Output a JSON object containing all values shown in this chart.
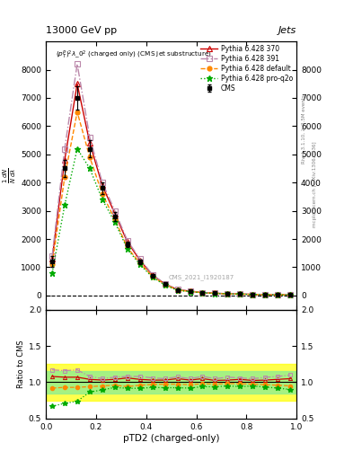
{
  "title_left": "13000 GeV pp",
  "title_right": "Jets",
  "plot_label": "$(p_T^P)^2\\lambda\\_0^2$ (charged only) (CMS jet substructure)",
  "watermark": "CMS_2021_I1920187",
  "xlabel": "pTD2 (charged-only)",
  "right_label_top": "Rivet 3.1.10, ≥ 2.5M events",
  "right_label_bottom": "mcplots.cern.ch [arXiv:1306.3436]",
  "xlim": [
    0,
    1
  ],
  "ylim_main": [
    -500,
    9000
  ],
  "ylim_ratio": [
    0.5,
    2.0
  ],
  "x_data": [
    0.025,
    0.075,
    0.125,
    0.175,
    0.225,
    0.275,
    0.325,
    0.375,
    0.425,
    0.475,
    0.525,
    0.575,
    0.625,
    0.675,
    0.725,
    0.775,
    0.825,
    0.875,
    0.925,
    0.975
  ],
  "cms_y": [
    1200,
    4500,
    7000,
    5200,
    3800,
    2800,
    1800,
    1200,
    700,
    400,
    200,
    150,
    100,
    80,
    60,
    50,
    40,
    30,
    25,
    20
  ],
  "cms_yerr": [
    200,
    300,
    400,
    300,
    200,
    150,
    100,
    80,
    50,
    30,
    20,
    15,
    10,
    8,
    6,
    5,
    4,
    3,
    3,
    3
  ],
  "p370_y": [
    1300,
    4800,
    7500,
    5400,
    3900,
    2900,
    1900,
    1250,
    720,
    410,
    210,
    155,
    105,
    82,
    62,
    52,
    41,
    31,
    26,
    21
  ],
  "p391_y": [
    1400,
    5200,
    8200,
    5600,
    4000,
    3000,
    1950,
    1300,
    740,
    420,
    215,
    158,
    108,
    84,
    64,
    53,
    42,
    32,
    27,
    22
  ],
  "pdefault_y": [
    1100,
    4200,
    6500,
    4900,
    3600,
    2700,
    1700,
    1150,
    680,
    390,
    195,
    145,
    98,
    78,
    59,
    49,
    39,
    29,
    24,
    19
  ],
  "pproq2o_y": [
    800,
    3200,
    5200,
    4500,
    3400,
    2600,
    1650,
    1100,
    650,
    370,
    185,
    138,
    94,
    75,
    57,
    47,
    38,
    28,
    23,
    18
  ],
  "ratio_p370": [
    1.08,
    1.07,
    1.07,
    1.04,
    1.03,
    1.04,
    1.06,
    1.04,
    1.03,
    1.03,
    1.05,
    1.03,
    1.05,
    1.025,
    1.03,
    1.04,
    1.025,
    1.03,
    1.04,
    1.05
  ],
  "ratio_p391": [
    1.17,
    1.16,
    1.17,
    1.08,
    1.05,
    1.07,
    1.08,
    1.08,
    1.06,
    1.05,
    1.075,
    1.05,
    1.08,
    1.05,
    1.07,
    1.06,
    1.05,
    1.067,
    1.08,
    1.1
  ],
  "ratio_pdefault": [
    0.92,
    0.93,
    0.93,
    0.94,
    0.95,
    0.96,
    0.94,
    0.96,
    0.97,
    0.975,
    0.975,
    0.967,
    0.98,
    0.975,
    0.983,
    0.98,
    0.975,
    0.967,
    0.96,
    0.95
  ],
  "ratio_pproq2o": [
    0.67,
    0.71,
    0.74,
    0.865,
    0.895,
    0.929,
    0.917,
    0.917,
    0.929,
    0.925,
    0.925,
    0.92,
    0.94,
    0.9375,
    0.95,
    0.94,
    0.95,
    0.933,
    0.92,
    0.9
  ],
  "cms_color": "#000000",
  "p370_color": "#cc0000",
  "p391_color": "#bb88aa",
  "pdefault_color": "#ff8800",
  "pproq2o_color": "#00aa00",
  "band_green_inner": [
    0.85,
    1.15
  ],
  "band_yellow_outer": [
    0.75,
    1.25
  ],
  "yticks_main": [
    0,
    1000,
    2000,
    3000,
    4000,
    5000,
    6000,
    7000,
    8000
  ],
  "yticks_ratio": [
    0.5,
    1.0,
    1.5,
    2.0
  ],
  "background_color": "#ffffff"
}
